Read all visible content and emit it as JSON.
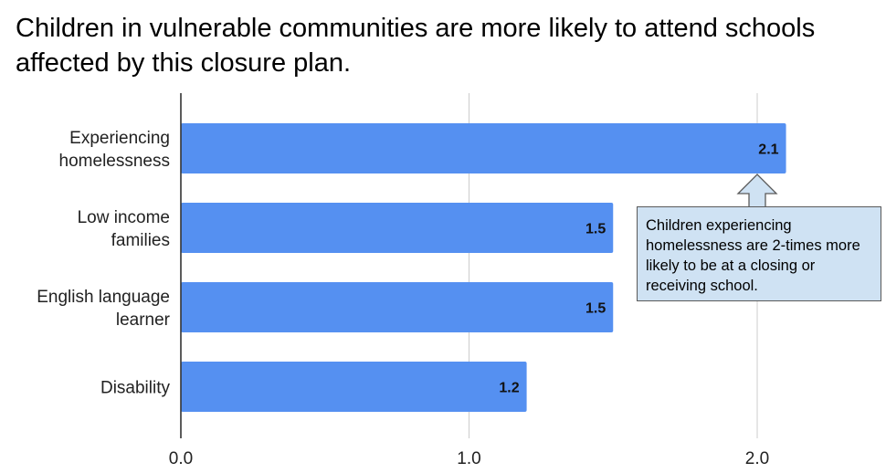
{
  "chart_data": {
    "type": "bar",
    "orientation": "horizontal",
    "title": "Children in vulnerable communities are more likely to attend schools affected by this closure plan.",
    "categories": [
      [
        "Experiencing",
        "homelessness"
      ],
      [
        "Low income",
        "families"
      ],
      [
        "English language",
        "learner"
      ],
      [
        "Disability"
      ]
    ],
    "values": [
      2.1,
      1.5,
      1.5,
      1.2
    ],
    "data_labels": [
      "2.1",
      "1.5",
      "1.5",
      "1.2"
    ],
    "xlim": [
      0,
      2.4
    ],
    "xticks": [
      0.0,
      1.0,
      2.0
    ],
    "xtick_labels": [
      "0.0",
      "1.0",
      "2.0"
    ],
    "xlabel": "",
    "ylabel": "",
    "grid": "vertical",
    "bar_color": "#5590f1",
    "annotation": {
      "text": "Children experiencing homelessness are 2-times more likely to be at a closing or receiving school.",
      "points_to": "Experiencing homelessness",
      "fill": "#cfe2f3",
      "border": "#5a5a5a"
    }
  }
}
